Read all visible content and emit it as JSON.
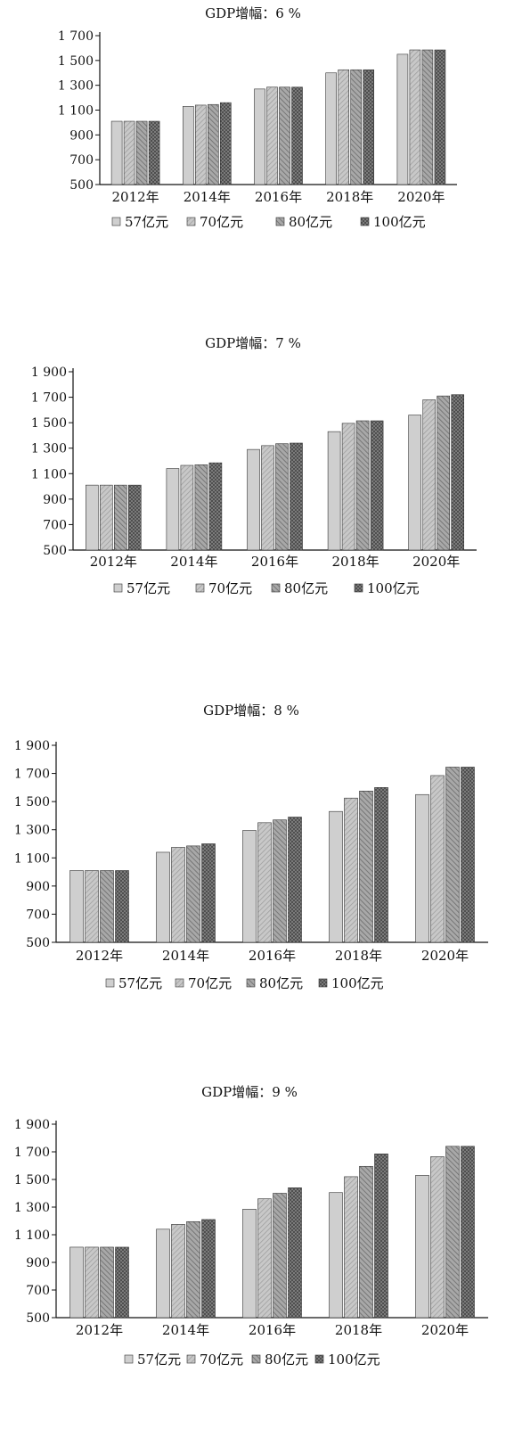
{
  "colors": {
    "series": [
      "#c4c4c4",
      "#b4b4b4",
      "#8a8a8a",
      "#6e6e6e"
    ],
    "stroke": "#333333",
    "axis": "#111111"
  },
  "chart_data": [
    {
      "type": "bar",
      "title": "GDP增幅：6 %",
      "categories": [
        "2012年",
        "2014年",
        "2016年",
        "2018年",
        "2020年"
      ],
      "ylim": [
        500,
        1700
      ],
      "yticks": [
        500,
        700,
        900,
        1100,
        1300,
        1500,
        1700
      ],
      "ytick_labels": [
        "500",
        "700",
        "900",
        "1 100",
        "1 300",
        "1 500",
        "1 700"
      ],
      "grid": false,
      "legend_position": "bottom",
      "series": [
        {
          "name": "57亿元",
          "values": [
            1010,
            1130,
            1270,
            1400,
            1550
          ]
        },
        {
          "name": "70亿元",
          "values": [
            1010,
            1140,
            1285,
            1425,
            1585
          ]
        },
        {
          "name": "80亿元",
          "values": [
            1010,
            1145,
            1285,
            1425,
            1585
          ]
        },
        {
          "name": "100亿元",
          "values": [
            1010,
            1160,
            1285,
            1425,
            1585
          ]
        }
      ]
    },
    {
      "type": "bar",
      "title": "GDP增幅：7 %",
      "categories": [
        "2012年",
        "2014年",
        "2016年",
        "2018年",
        "2020年"
      ],
      "ylim": [
        500,
        1900
      ],
      "yticks": [
        500,
        700,
        900,
        1100,
        1300,
        1500,
        1700,
        1900
      ],
      "ytick_labels": [
        "500",
        "700",
        "900",
        "1 100",
        "1 300",
        "1 500",
        "1 700",
        "1 900"
      ],
      "grid": false,
      "legend_position": "bottom",
      "series": [
        {
          "name": "57亿元",
          "values": [
            1010,
            1140,
            1290,
            1430,
            1560
          ]
        },
        {
          "name": "70亿元",
          "values": [
            1010,
            1165,
            1320,
            1495,
            1680
          ]
        },
        {
          "name": "80亿元",
          "values": [
            1010,
            1170,
            1335,
            1515,
            1710
          ]
        },
        {
          "name": "100亿元",
          "values": [
            1010,
            1185,
            1340,
            1515,
            1720
          ]
        }
      ]
    },
    {
      "type": "bar",
      "title": "GDP增幅：8 %",
      "categories": [
        "2012年",
        "2014年",
        "2016年",
        "2018年",
        "2020年"
      ],
      "ylim": [
        500,
        1900
      ],
      "yticks": [
        500,
        700,
        900,
        1100,
        1300,
        1500,
        1700,
        1900
      ],
      "ytick_labels": [
        "500",
        "700",
        "900",
        "1 100",
        "1 300",
        "1 500",
        "1 700",
        "1 900"
      ],
      "grid": false,
      "legend_position": "bottom",
      "series": [
        {
          "name": "57亿元",
          "values": [
            1010,
            1140,
            1295,
            1430,
            1550
          ]
        },
        {
          "name": "70亿元",
          "values": [
            1010,
            1175,
            1350,
            1525,
            1685
          ]
        },
        {
          "name": "80亿元",
          "values": [
            1010,
            1185,
            1370,
            1575,
            1745
          ]
        },
        {
          "name": "100亿元",
          "values": [
            1010,
            1200,
            1390,
            1600,
            1745
          ]
        }
      ]
    },
    {
      "type": "bar",
      "title": "GDP增幅：9 %",
      "categories": [
        "2012年",
        "2014年",
        "2016年",
        "2018年",
        "2020年"
      ],
      "ylim": [
        500,
        1900
      ],
      "yticks": [
        500,
        700,
        900,
        1100,
        1300,
        1500,
        1700,
        1900
      ],
      "ytick_labels": [
        "500",
        "700",
        "900",
        "1 100",
        "1 300",
        "1 500",
        "1 700",
        "1 900"
      ],
      "grid": false,
      "legend_position": "bottom",
      "series": [
        {
          "name": "57亿元",
          "values": [
            1010,
            1140,
            1285,
            1405,
            1530
          ]
        },
        {
          "name": "70亿元",
          "values": [
            1010,
            1175,
            1360,
            1520,
            1665
          ]
        },
        {
          "name": "80亿元",
          "values": [
            1010,
            1195,
            1400,
            1595,
            1740
          ]
        },
        {
          "name": "100亿元",
          "values": [
            1010,
            1210,
            1440,
            1685,
            1740
          ]
        }
      ]
    }
  ]
}
